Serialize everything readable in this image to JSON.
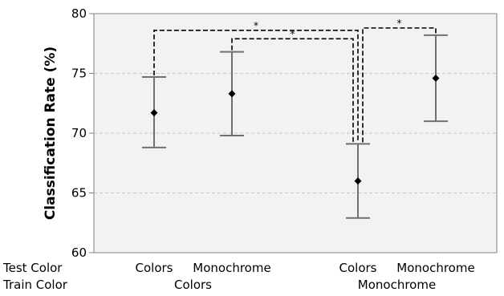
{
  "chart_data": {
    "type": "scatter",
    "ylabel": "Classification Rate (%)",
    "ylim": [
      60,
      80
    ],
    "yticks": [
      60,
      65,
      70,
      75,
      80
    ],
    "grid": true,
    "row_labels": {
      "test": "Test Color",
      "train": "Train Color"
    },
    "groups": [
      {
        "train": "Colors",
        "points": [
          {
            "test": "Colors",
            "mean": 71.7,
            "low": 68.8,
            "high": 74.7
          },
          {
            "test": "Monochrome",
            "mean": 73.3,
            "low": 69.8,
            "high": 76.8
          }
        ]
      },
      {
        "train": "Monochrome",
        "points": [
          {
            "test": "Colors",
            "mean": 66.0,
            "low": 62.9,
            "high": 69.1
          },
          {
            "test": "Monochrome",
            "mean": 74.6,
            "low": 71.0,
            "high": 78.2
          }
        ]
      }
    ],
    "significance": [
      {
        "from": [
          0,
          0
        ],
        "to": [
          1,
          0
        ],
        "label": "*",
        "y": 78.6
      },
      {
        "from": [
          0,
          1
        ],
        "to": [
          1,
          0
        ],
        "label": "*",
        "y": 77.9
      },
      {
        "from": [
          1,
          0
        ],
        "to": [
          1,
          1
        ],
        "label": "*",
        "y": 78.8
      }
    ]
  }
}
